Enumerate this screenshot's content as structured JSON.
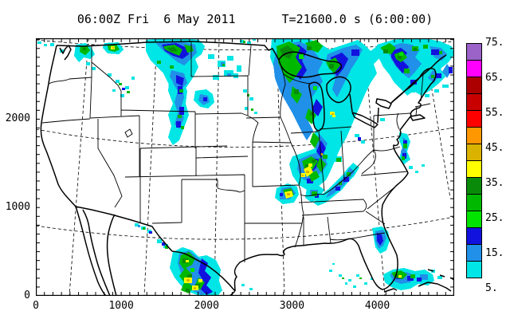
{
  "title": {
    "valid_time": "06:00Z Fri  6 May 2011",
    "forecast_time": "T=21600.0 s (6:00:00)"
  },
  "axes": {
    "x": {
      "tick_labels": [
        "0",
        "1000",
        "2000",
        "3000",
        "4000"
      ],
      "minor_tick_interval_km": 100,
      "major_label_interval_km": 1000
    },
    "y": {
      "tick_labels": [
        "0",
        "1000",
        "2000"
      ],
      "minor_tick_interval_km": 100,
      "major_label_interval_km": 1000
    }
  },
  "colorbar": {
    "tick_labels": [
      "75.",
      "65.",
      "55.",
      "45.",
      "35.",
      "25.",
      "15.",
      "5."
    ],
    "n_boxes": 14,
    "colors_top_to_bottom": [
      "#9B62C8",
      "#FF00FF",
      "#AC0000",
      "#C80000",
      "#FF0000",
      "#FF9800",
      "#DAB200",
      "#FFFF00",
      "#098B09",
      "#00B800",
      "#00E400",
      "#1212DF",
      "#2090E8",
      "#00E5E5"
    ]
  },
  "map_colors": {
    "line": "#000000",
    "background": "#ffffff",
    "precip_cyan": "#00E5E5",
    "precip_lightblue": "#2090E8",
    "precip_blue": "#1212DF",
    "precip_green": "#00B800",
    "precip_darkgreen": "#098B09",
    "precip_brightgreen": "#00E400",
    "precip_yellow": "#FFFF00",
    "precip_gold": "#DAB200"
  }
}
